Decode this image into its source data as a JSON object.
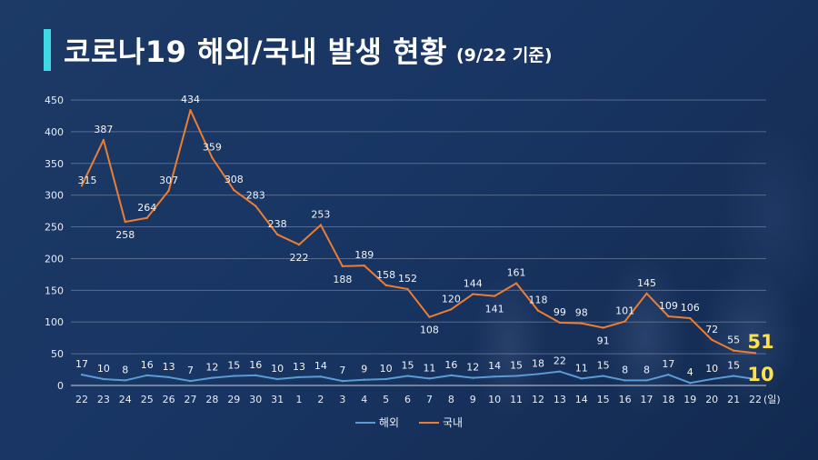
{
  "title": {
    "main": "코로나19 해외/국내 발생 현황",
    "sub": "(9/22 기준)"
  },
  "colors": {
    "accent": "#3fd8e6",
    "overseas": "#5b9bd5",
    "domestic": "#ed7d31",
    "highlight": "#ffe14d"
  },
  "chart_data": {
    "type": "line",
    "categories": [
      "22",
      "23",
      "24",
      "25",
      "26",
      "27",
      "28",
      "29",
      "30",
      "31",
      "1",
      "2",
      "3",
      "4",
      "5",
      "6",
      "7",
      "8",
      "9",
      "10",
      "11",
      "12",
      "13",
      "14",
      "15",
      "16",
      "17",
      "18",
      "19",
      "20",
      "21",
      "22"
    ],
    "x_unit": "(일)",
    "ylim": [
      0,
      450
    ],
    "yticks": [
      0,
      50,
      100,
      150,
      200,
      250,
      300,
      350,
      400,
      450
    ],
    "grid": true,
    "legend_position": "bottom-center",
    "series": [
      {
        "name": "해외",
        "values": [
          17,
          10,
          8,
          16,
          13,
          7,
          12,
          15,
          16,
          10,
          13,
          14,
          7,
          9,
          10,
          15,
          11,
          16,
          12,
          14,
          15,
          18,
          22,
          11,
          15,
          8,
          8,
          17,
          4,
          10,
          15,
          10
        ]
      },
      {
        "name": "국내",
        "values": [
          315,
          387,
          258,
          264,
          307,
          434,
          359,
          308,
          283,
          238,
          222,
          253,
          188,
          189,
          158,
          152,
          108,
          120,
          144,
          141,
          161,
          118,
          99,
          98,
          91,
          101,
          145,
          109,
          106,
          72,
          55,
          51
        ]
      }
    ]
  }
}
